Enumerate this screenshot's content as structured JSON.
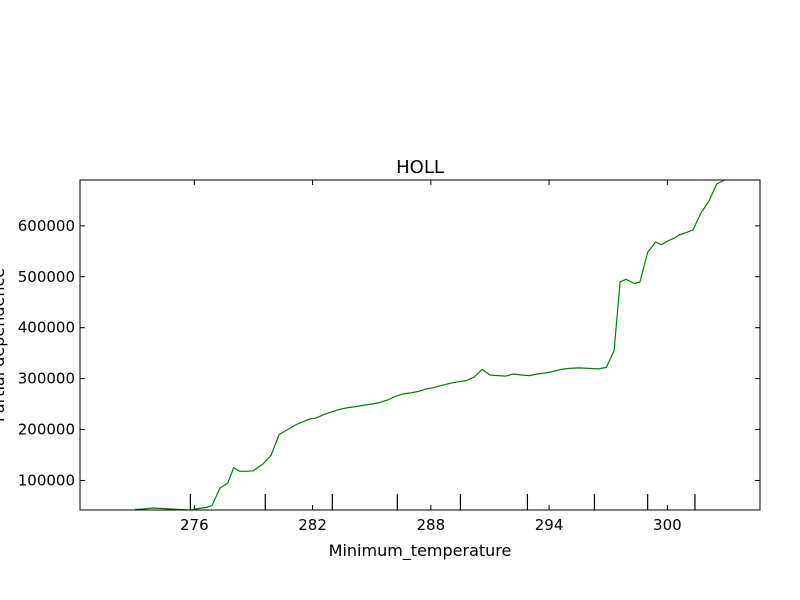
{
  "chart_data": {
    "type": "line",
    "title": "HOLL",
    "xlabel": "Minimum_temperature",
    "ylabel": "Partial dependence",
    "xlim": [
      270.2,
      304.7
    ],
    "ylim": [
      42000,
      690000
    ],
    "x_ticks": [
      276,
      282,
      288,
      294,
      300
    ],
    "x_tick_labels": [
      "276",
      "282",
      "288",
      "294",
      "300"
    ],
    "y_ticks": [
      100000,
      200000,
      300000,
      400000,
      500000,
      600000
    ],
    "y_tick_labels": [
      "100000",
      "200000",
      "300000",
      "400000",
      "500000",
      "600000"
    ],
    "rug_ticks": [
      275.8,
      279.6,
      283.0,
      286.3,
      289.5,
      292.9,
      296.3,
      299.0,
      301.4
    ],
    "grid": false,
    "colors": {
      "line": "#008000"
    },
    "series": [
      {
        "x": [
          273.0,
          273.4,
          273.9,
          274.4,
          274.8,
          275.2,
          275.8,
          276.2,
          276.6,
          276.9,
          277.3,
          277.7,
          278.0,
          278.3,
          278.6,
          279.0,
          279.5,
          279.9,
          280.3,
          280.6,
          281.0,
          281.3,
          281.8,
          282.2,
          282.6,
          283.0,
          283.4,
          283.8,
          284.2,
          284.6,
          285.0,
          285.4,
          285.8,
          286.2,
          286.6,
          287.0,
          287.4,
          287.8,
          288.2,
          288.6,
          289.0,
          289.4,
          289.8,
          290.2,
          290.6,
          291.0,
          291.4,
          291.8,
          292.2,
          292.6,
          293.0,
          293.4,
          293.8,
          294.2,
          294.6,
          295.0,
          295.5,
          296.0,
          296.5,
          296.9,
          297.3,
          297.6,
          297.9,
          298.3,
          298.6,
          299.0,
          299.4,
          299.7,
          300.0,
          300.3,
          300.6,
          300.9,
          301.3,
          301.7,
          302.1,
          302.5,
          302.9
        ],
        "y": [
          43000,
          44000,
          46000,
          45000,
          44000,
          43000,
          42000,
          45000,
          47000,
          51000,
          85000,
          95000,
          125000,
          118000,
          118000,
          119000,
          133000,
          150000,
          190000,
          197000,
          206000,
          212000,
          220000,
          223000,
          230000,
          235000,
          240000,
          243000,
          245000,
          248000,
          250000,
          253000,
          258000,
          265000,
          270000,
          272000,
          275000,
          280000,
          283000,
          287000,
          291000,
          294000,
          296000,
          303000,
          318000,
          307000,
          306000,
          305000,
          309000,
          307000,
          306000,
          309000,
          311000,
          314000,
          318000,
          320000,
          321000,
          320000,
          319000,
          322000,
          355000,
          490000,
          495000,
          487000,
          489000,
          548000,
          568000,
          563000,
          570000,
          575000,
          582000,
          586000,
          592000,
          625000,
          648000,
          682000,
          690000
        ]
      }
    ]
  }
}
